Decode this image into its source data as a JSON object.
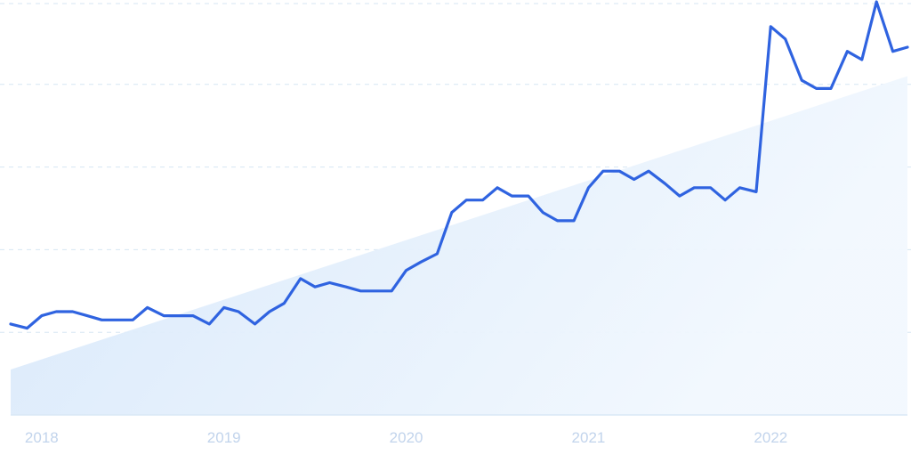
{
  "chart_data": {
    "type": "line",
    "title": "",
    "xlabel": "",
    "ylabel": "",
    "grid": true,
    "y_ticks_visible": false,
    "x_tick_labels": [
      "2018",
      "2019",
      "2020",
      "2021",
      "2022"
    ],
    "x_tick_positions": [
      2018,
      2019,
      2020,
      2021,
      2022
    ],
    "xlim": [
      2017.83,
      2022.75
    ],
    "ylim": [
      0,
      100
    ],
    "gridlines_y": [
      20,
      40,
      60,
      80,
      100
    ],
    "series": [
      {
        "color": "#2f63e0",
        "x": [
          2017.83,
          2017.92,
          2018.0,
          2018.08,
          2018.17,
          2018.25,
          2018.33,
          2018.42,
          2018.5,
          2018.58,
          2018.67,
          2018.75,
          2018.83,
          2018.92,
          2019.0,
          2019.08,
          2019.17,
          2019.25,
          2019.33,
          2019.42,
          2019.5,
          2019.58,
          2019.67,
          2019.75,
          2019.83,
          2019.92,
          2020.0,
          2020.08,
          2020.17,
          2020.25,
          2020.33,
          2020.42,
          2020.5,
          2020.58,
          2020.67,
          2020.75,
          2020.83,
          2020.92,
          2021.0,
          2021.08,
          2021.17,
          2021.25,
          2021.33,
          2021.42,
          2021.5,
          2021.58,
          2021.67,
          2021.75,
          2021.83,
          2021.92,
          2022.0,
          2022.08,
          2022.17,
          2022.25,
          2022.33,
          2022.42,
          2022.5,
          2022.58,
          2022.67,
          2022.75
        ],
        "values": [
          22,
          21,
          24,
          25,
          25,
          24,
          23,
          23,
          23,
          26,
          24,
          24,
          24,
          22,
          26,
          25,
          22,
          25,
          27,
          33,
          31,
          32,
          31,
          30,
          30,
          30,
          35,
          37,
          39,
          49,
          52,
          52,
          55,
          53,
          53,
          49,
          47,
          47,
          55,
          59,
          59,
          57,
          59,
          56,
          53,
          55,
          55,
          52,
          55,
          54,
          94,
          91,
          81,
          79,
          79,
          88,
          86,
          100,
          88,
          89
        ]
      }
    ],
    "trend_area": {
      "color": "#d4e6f9",
      "start_value": 11,
      "end_value": 82
    }
  }
}
